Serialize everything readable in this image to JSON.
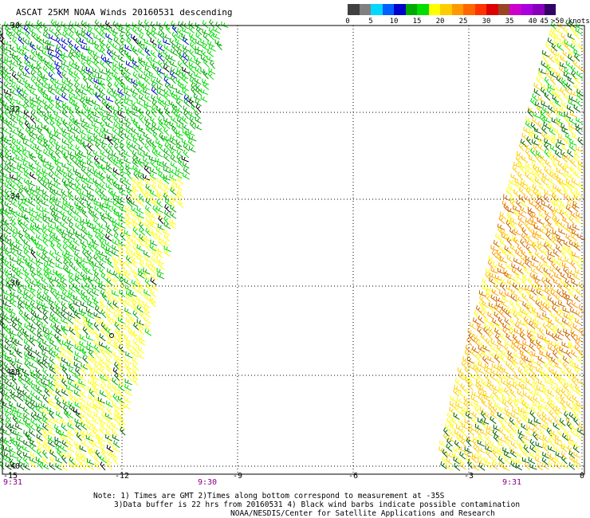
{
  "header": {
    "title": "ASCAT 25KM NOAA Winds 20160531 descending"
  },
  "legend": {
    "unit_label": ">50 knots",
    "bins": [
      {
        "label": "0",
        "color": "#404040"
      },
      {
        "label": "",
        "color": "#808080"
      },
      {
        "label": "5",
        "color": "#00d8ff"
      },
      {
        "label": "",
        "color": "#0060ff"
      },
      {
        "label": "10",
        "color": "#0000cc"
      },
      {
        "label": "",
        "color": "#00aa00"
      },
      {
        "label": "15",
        "color": "#00dd00"
      },
      {
        "label": "",
        "color": "#ffff00"
      },
      {
        "label": "20",
        "color": "#ffcc00"
      },
      {
        "label": "",
        "color": "#ff9900"
      },
      {
        "label": "25",
        "color": "#ff6600"
      },
      {
        "label": "",
        "color": "#ff3300"
      },
      {
        "label": "30",
        "color": "#dd0000"
      },
      {
        "label": "",
        "color": "#994422"
      },
      {
        "label": "35",
        "color": "#cc00cc"
      },
      {
        "label": "",
        "color": "#aa00dd"
      },
      {
        "label": "40",
        "color": "#8800bb"
      },
      {
        "label": "45",
        "color": "#330066"
      }
    ]
  },
  "axes": {
    "lat_labels": [
      "-30",
      "-32",
      "-34",
      "-36",
      "-38",
      "-40"
    ],
    "lon_labels": [
      "-15",
      "-12",
      "-9",
      "-6",
      "-3",
      "0"
    ],
    "time_labels": [
      "9:31",
      "9:30",
      "9:31"
    ]
  },
  "notes": {
    "line1": "Note: 1) Times are GMT 2)Times along bottom correspond to measurement at -35S",
    "line2": "3)Data buffer is 22 hrs from 20160531 4) Black wind barbs indicate possible contamination",
    "line3": "NOAA/NESDIS/Center for Satellite Applications and Research"
  }
}
